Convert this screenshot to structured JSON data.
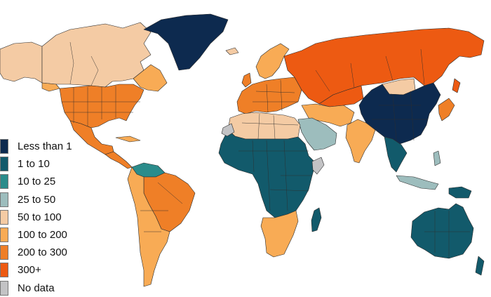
{
  "legend": {
    "items": [
      {
        "label": "Less than 1",
        "color": "#0d2a4f"
      },
      {
        "label": "1 to 10",
        "color": "#125a6b"
      },
      {
        "label": "10 to 25",
        "color": "#2b8c8b"
      },
      {
        "label": "25 to 50",
        "color": "#9dbdbd"
      },
      {
        "label": "50 to 100",
        "color": "#f4cba4"
      },
      {
        "label": "100 to 200",
        "color": "#f8ab55"
      },
      {
        "label": "200 to 300",
        "color": "#ef7f27"
      },
      {
        "label": "300+",
        "color": "#ed5a12"
      },
      {
        "label": "No data",
        "color": "#c3c3c5"
      }
    ]
  },
  "regions": {
    "canada": "#f4cba4",
    "canada_east": "#f8ab55",
    "alaska": "#f4cba4",
    "greenland": "#0d2a4f",
    "usa": "#ef7f27",
    "mexico": "#ef7f27",
    "central_america": "#ef7f27",
    "south_america": "#f8ab55",
    "brazil": "#ef7f27",
    "colombia_venezuela": "#2b8c8b",
    "europe": "#ef7f27",
    "scandinavia": "#f8ab55",
    "russia": "#ed5a12",
    "mongolia": "#f4cba4",
    "china": "#0d2a4f",
    "north_africa": "#f4cba4",
    "sub_saharan_africa": "#125a6b",
    "south_africa": "#f8ab55",
    "middle_east": "#f8ab55",
    "arabia": "#9dbdbd",
    "india": "#f8ab55",
    "southeast_asia": "#125a6b",
    "indonesia": "#9dbdbd",
    "japan": "#ef7f27",
    "australia": "#125a6b",
    "new_zealand": "#125a6b",
    "madagascar": "#125a6b",
    "no_data": "#c3c3c5"
  }
}
